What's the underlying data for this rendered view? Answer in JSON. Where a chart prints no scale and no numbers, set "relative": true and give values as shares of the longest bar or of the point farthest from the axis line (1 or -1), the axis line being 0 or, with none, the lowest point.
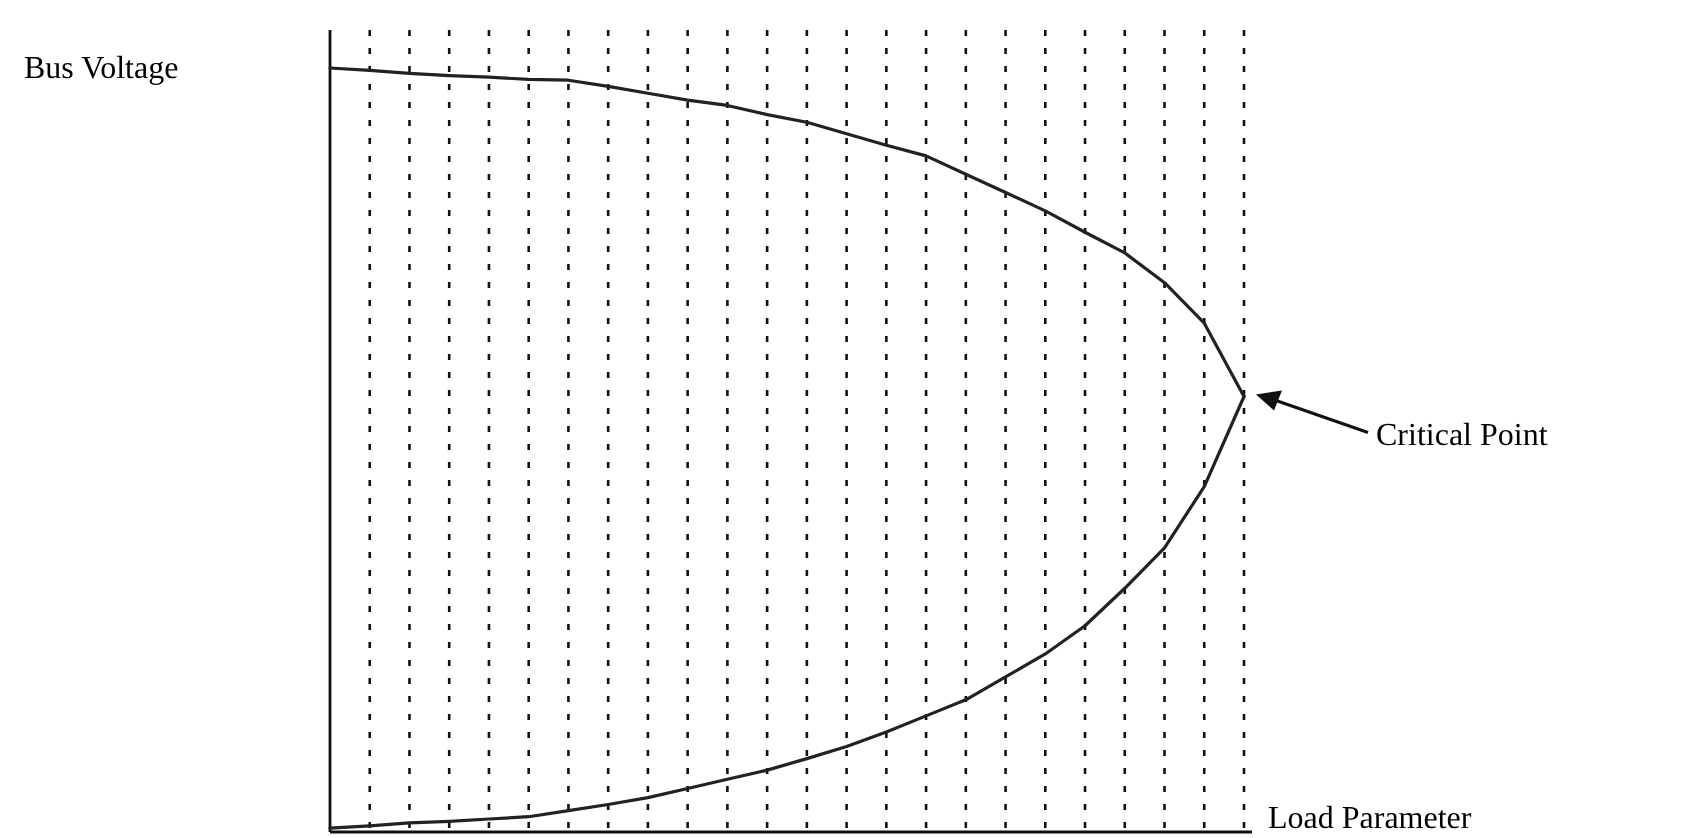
{
  "chart_data": {
    "type": "line",
    "relative": true,
    "xlabel": "Load Parameter",
    "ylabel": "Bus Voltage",
    "grid": "x",
    "line_style": "solid",
    "marker": "none",
    "categories": [
      null,
      null,
      null,
      null,
      null,
      null,
      null,
      null,
      null,
      null,
      null,
      null,
      null,
      null,
      null,
      null,
      null,
      null,
      null,
      null,
      null,
      null,
      null,
      null
    ],
    "series": [
      {
        "color": "#222222",
        "values": [
          1.0,
          0.997,
          0.993,
          0.99,
          0.988,
          0.985,
          0.984,
          0.976,
          0.967,
          0.958,
          0.951,
          0.939,
          0.929,
          0.914,
          0.899,
          0.885,
          0.861,
          0.837,
          0.813,
          0.785,
          0.758,
          0.719,
          0.666,
          0.57
        ]
      },
      {
        "color": "#222222",
        "values": [
          0.005,
          0.008,
          0.012,
          0.014,
          0.017,
          0.02,
          0.028,
          0.036,
          0.045,
          0.057,
          0.069,
          0.081,
          0.096,
          0.112,
          0.131,
          0.152,
          0.173,
          0.203,
          0.233,
          0.27,
          0.319,
          0.372,
          0.452,
          0.57
        ]
      }
    ],
    "annotations": [
      "Critical Point"
    ]
  }
}
